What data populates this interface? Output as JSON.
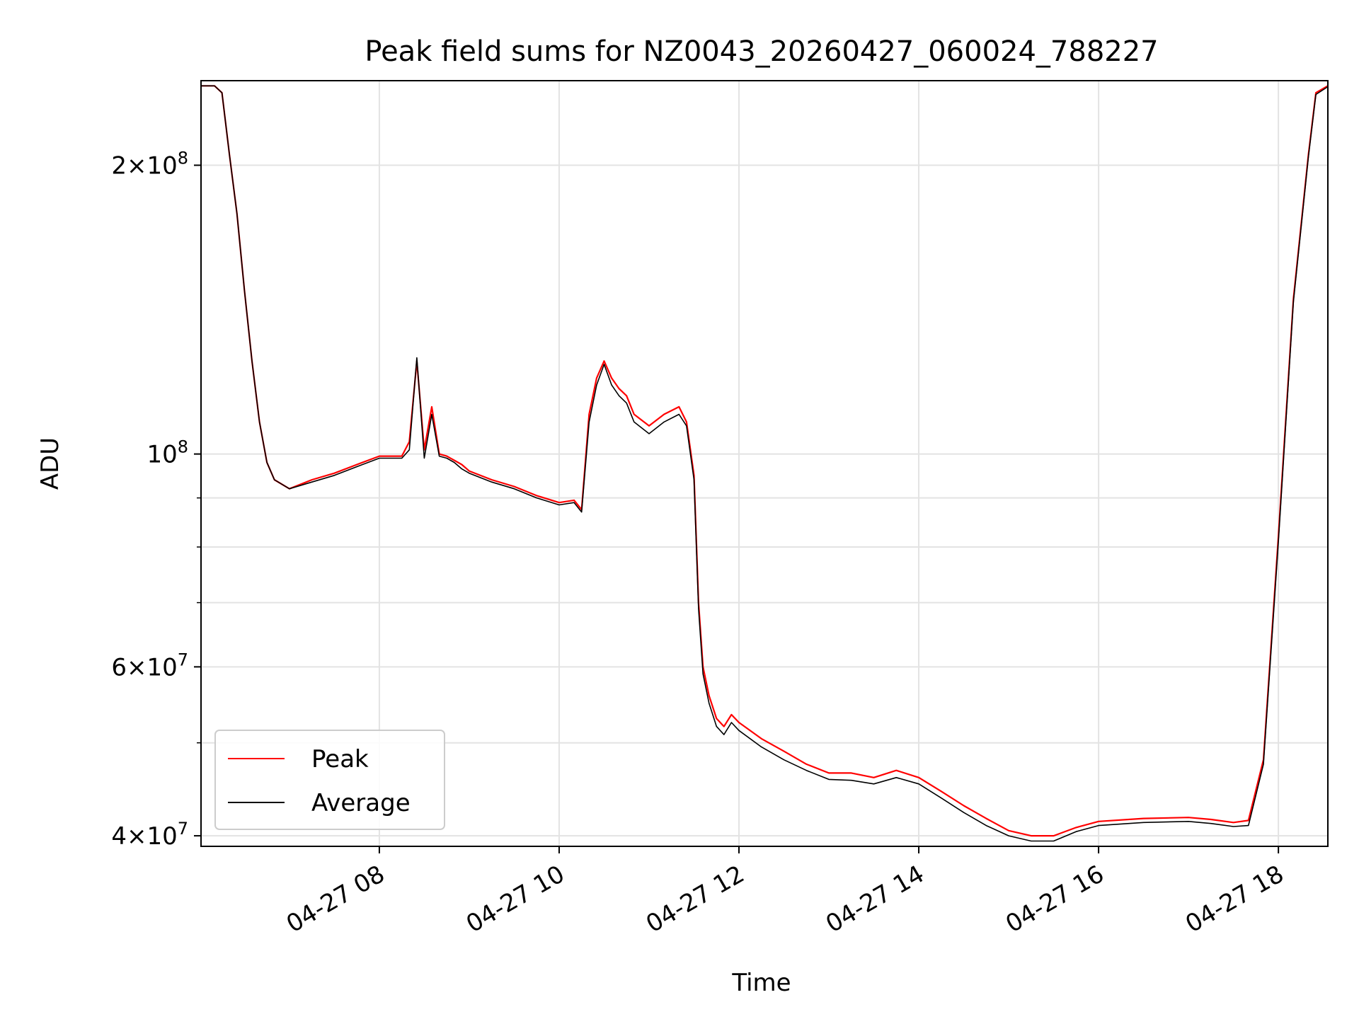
{
  "chart_data": {
    "type": "line",
    "title": "Peak field sums for NZ0043_20260427_060024_788227",
    "xlabel": "Time",
    "ylabel": "ADU",
    "y_scale": "log",
    "grid": true,
    "legend_placement": "lower-left",
    "xlim": [
      "2026-04-27 06:01",
      "2026-04-27 18:33"
    ],
    "ylim": [
      39000000,
      245000000
    ],
    "x_ticks": [
      "2026-04-27 08:00",
      "2026-04-27 10:00",
      "2026-04-27 12:00",
      "2026-04-27 14:00",
      "2026-04-27 16:00",
      "2026-04-27 18:00"
    ],
    "x_tick_labels": [
      "04-27 08",
      "04-27 10",
      "04-27 12",
      "04-27 14",
      "04-27 16",
      "04-27 18"
    ],
    "y_major_ticks": [
      {
        "value": 40000000,
        "mantissa": "4",
        "exponent": "7"
      },
      {
        "value": 60000000,
        "mantissa": "6",
        "exponent": "7"
      },
      {
        "value": 100000000,
        "mantissa": "",
        "exponent": "8"
      },
      {
        "value": 200000000,
        "mantissa": "2",
        "exponent": "8"
      }
    ],
    "y_minor_ticks": [
      50000000,
      70000000,
      80000000,
      90000000
    ],
    "x": [
      "2026-04-27 06:01",
      "2026-04-27 06:10",
      "2026-04-27 06:15",
      "2026-04-27 06:20",
      "2026-04-27 06:25",
      "2026-04-27 06:30",
      "2026-04-27 06:35",
      "2026-04-27 06:40",
      "2026-04-27 06:45",
      "2026-04-27 06:50",
      "2026-04-27 07:00",
      "2026-04-27 07:15",
      "2026-04-27 07:30",
      "2026-04-27 07:45",
      "2026-04-27 08:00",
      "2026-04-27 08:15",
      "2026-04-27 08:20",
      "2026-04-27 08:25",
      "2026-04-27 08:30",
      "2026-04-27 08:35",
      "2026-04-27 08:40",
      "2026-04-27 08:45",
      "2026-04-27 08:50",
      "2026-04-27 08:55",
      "2026-04-27 09:00",
      "2026-04-27 09:15",
      "2026-04-27 09:30",
      "2026-04-27 09:45",
      "2026-04-27 10:00",
      "2026-04-27 10:10",
      "2026-04-27 10:15",
      "2026-04-27 10:20",
      "2026-04-27 10:25",
      "2026-04-27 10:30",
      "2026-04-27 10:35",
      "2026-04-27 10:40",
      "2026-04-27 10:45",
      "2026-04-27 10:50",
      "2026-04-27 11:00",
      "2026-04-27 11:10",
      "2026-04-27 11:20",
      "2026-04-27 11:25",
      "2026-04-27 11:30",
      "2026-04-27 11:33",
      "2026-04-27 11:36",
      "2026-04-27 11:40",
      "2026-04-27 11:45",
      "2026-04-27 11:50",
      "2026-04-27 11:55",
      "2026-04-27 12:00",
      "2026-04-27 12:15",
      "2026-04-27 12:30",
      "2026-04-27 12:45",
      "2026-04-27 13:00",
      "2026-04-27 13:15",
      "2026-04-27 13:30",
      "2026-04-27 13:45",
      "2026-04-27 14:00",
      "2026-04-27 14:15",
      "2026-04-27 14:30",
      "2026-04-27 14:45",
      "2026-04-27 15:00",
      "2026-04-27 15:15",
      "2026-04-27 15:30",
      "2026-04-27 15:45",
      "2026-04-27 16:00",
      "2026-04-27 16:30",
      "2026-04-27 17:00",
      "2026-04-27 17:15",
      "2026-04-27 17:30",
      "2026-04-27 17:40",
      "2026-04-27 17:50",
      "2026-04-27 18:00",
      "2026-04-27 18:10",
      "2026-04-27 18:20",
      "2026-04-27 18:25",
      "2026-04-27 18:33"
    ],
    "series": [
      {
        "name": "Peak",
        "color": "#ff0000",
        "values": [
          242000000,
          242000000,
          238000000,
          205000000,
          178000000,
          148000000,
          125000000,
          108000000,
          98000000,
          94000000,
          92000000,
          94000000,
          95500000,
          97500000,
          99500000,
          99500000,
          103000000,
          125000000,
          101000000,
          112000000,
          100000000,
          99500000,
          98500000,
          97500000,
          96000000,
          94000000,
          92500000,
          90500000,
          89000000,
          89500000,
          87500000,
          110000000,
          120000000,
          125000000,
          120000000,
          117000000,
          115000000,
          110000000,
          107000000,
          110000000,
          112000000,
          108000000,
          95000000,
          70000000,
          60000000,
          56000000,
          53000000,
          52000000,
          53500000,
          52500000,
          50500000,
          49000000,
          47500000,
          46500000,
          46500000,
          46000000,
          46800000,
          46000000,
          44500000,
          43000000,
          41700000,
          40500000,
          40000000,
          40000000,
          40800000,
          41400000,
          41700000,
          41800000,
          41600000,
          41300000,
          41500000,
          48000000,
          82000000,
          145000000,
          205000000,
          238000000,
          242000000
        ]
      },
      {
        "name": "Average",
        "color": "#000000",
        "values": [
          242000000,
          242000000,
          238000000,
          205000000,
          178000000,
          148000000,
          125000000,
          108000000,
          98000000,
          94000000,
          92000000,
          93500000,
          95000000,
          97000000,
          99000000,
          99000000,
          101000000,
          126000000,
          99000000,
          110000000,
          99500000,
          99000000,
          98000000,
          96500000,
          95500000,
          93500000,
          92000000,
          90000000,
          88500000,
          89000000,
          87000000,
          108000000,
          118000000,
          124000000,
          118000000,
          115000000,
          113000000,
          108000000,
          105000000,
          108000000,
          110000000,
          107000000,
          94000000,
          69000000,
          59000000,
          55000000,
          52000000,
          51000000,
          52500000,
          51500000,
          49500000,
          48000000,
          46800000,
          45800000,
          45700000,
          45300000,
          46000000,
          45300000,
          43800000,
          42300000,
          41000000,
          40000000,
          39500000,
          39500000,
          40400000,
          41000000,
          41300000,
          41400000,
          41200000,
          40900000,
          41000000,
          47500000,
          81000000,
          144000000,
          204000000,
          237000000,
          241500000
        ]
      }
    ]
  }
}
